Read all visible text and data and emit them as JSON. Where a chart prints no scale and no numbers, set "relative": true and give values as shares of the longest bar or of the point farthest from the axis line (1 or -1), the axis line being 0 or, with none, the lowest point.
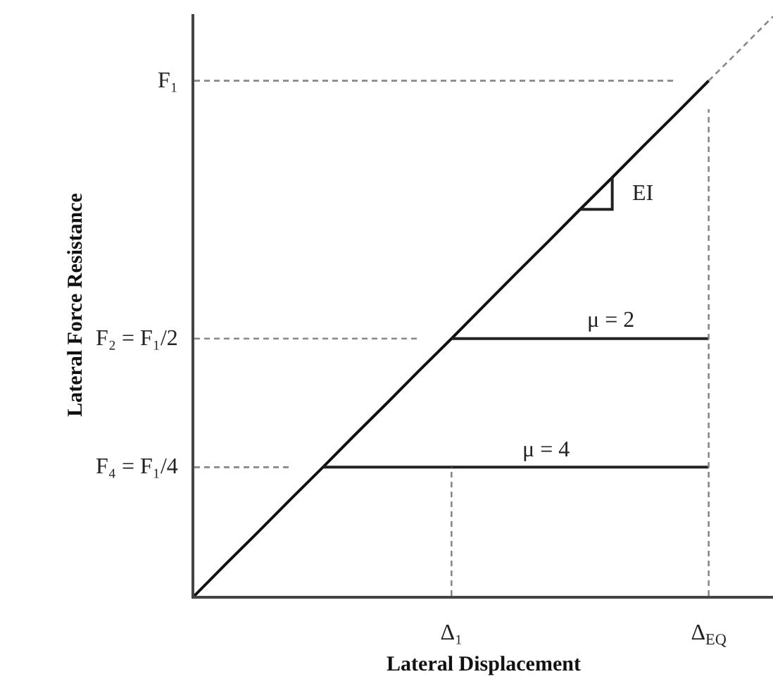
{
  "chart_data": {
    "type": "line",
    "relative": true,
    "xlabel": "Lateral Displacement",
    "ylabel": "Lateral Force Resistance",
    "categories": [
      null,
      null,
      null,
      null,
      null,
      null,
      null,
      null,
      "Δ₁",
      null,
      null,
      null,
      null,
      null,
      null,
      null,
      "Δ$_{EQ}$",
      null,
      null
    ],
    "series": [
      {
        "color": "#111111",
        "line_style": "solid",
        "values": [
          0,
          0.056,
          0.111,
          0.167,
          0.222,
          0.278,
          0.333,
          0.389,
          0.444,
          0.5,
          0.556,
          0.611,
          0.667,
          0.722,
          0.778,
          0.833,
          0.889,
          null,
          null
        ]
      },
      {
        "color": "#888888",
        "line_style": "dashed",
        "values": [
          null,
          null,
          null,
          null,
          null,
          null,
          null,
          null,
          null,
          null,
          null,
          null,
          null,
          null,
          null,
          null,
          0.889,
          0.944,
          1
        ]
      },
      {
        "name": "μ = 2",
        "color": "#222222",
        "line_style": "solid",
        "values": [
          null,
          null,
          null,
          null,
          null,
          null,
          null,
          null,
          0.444,
          0.444,
          0.444,
          0.444,
          0.444,
          0.444,
          0.444,
          0.444,
          0.444,
          null,
          null
        ]
      },
      {
        "name": "μ = 4",
        "color": "#222222",
        "line_style": "solid",
        "values": [
          null,
          null,
          null,
          null,
          0.222,
          0.222,
          0.222,
          0.222,
          0.222,
          0.222,
          0.222,
          0.222,
          0.222,
          0.222,
          0.222,
          0.222,
          0.222,
          null,
          null
        ]
      },
      {
        "name": "EI",
        "type": "step",
        "color": "#222222",
        "line_style": "solid",
        "values": [
          null,
          null,
          null,
          null,
          null,
          null,
          null,
          null,
          null,
          null,
          null,
          null,
          0.667,
          0.722,
          null,
          null,
          null,
          null,
          null
        ]
      },
      {
        "name": "F₁",
        "color": "#888888",
        "line_style": "dashed",
        "values": [
          0.889,
          0.889,
          0.889,
          0.889,
          0.889,
          0.889,
          0.889,
          0.889,
          0.889,
          0.889,
          0.889,
          0.889,
          0.889,
          0.889,
          0.889,
          0.889,
          null,
          null,
          null
        ]
      },
      {
        "name": "F₂ = F₁/2",
        "color": "#888888",
        "line_style": "dashed",
        "values": [
          0.444,
          0.444,
          0.444,
          0.444,
          0.444,
          0.444,
          0.444,
          0.444,
          null,
          null,
          null,
          null,
          null,
          null,
          null,
          null,
          null,
          null,
          null
        ]
      },
      {
        "name": "F₄ = F₁/4",
        "color": "#888888",
        "line_style": "dashed",
        "values": [
          0.222,
          0.222,
          0.222,
          0.222,
          null,
          null,
          null,
          null,
          null,
          null,
          null,
          null,
          null,
          null,
          null,
          null,
          null,
          null,
          null
        ]
      },
      {
        "color": "#888888",
        "line_style": "dashed",
        "x": [
          "Δ₁",
          "Δ₁"
        ],
        "values": [
          0,
          0.222
        ]
      },
      {
        "color": "#888888",
        "line_style": "dashed",
        "x": [
          "Δ$_{EQ}$",
          "Δ$_{EQ}$"
        ],
        "values": [
          0,
          0.84
        ]
      }
    ]
  }
}
